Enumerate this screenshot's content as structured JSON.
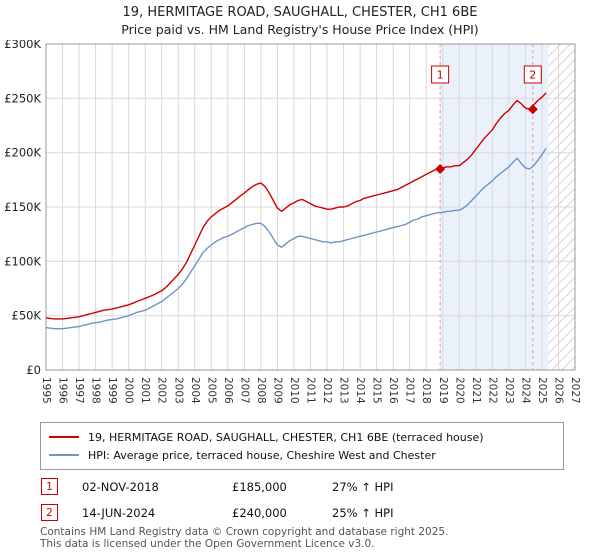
{
  "title": "19, HERMITAGE ROAD, SAUGHALL, CHESTER, CH1 6BE",
  "subtitle": "Price paid vs. HM Land Registry's House Price Index (HPI)",
  "chart_data": {
    "type": "line",
    "x_range": [
      1995,
      2027
    ],
    "y_range": [
      0,
      300
    ],
    "y_units": "GBP thousands",
    "y_ticks": [
      {
        "value": 0,
        "label": "£0"
      },
      {
        "value": 50,
        "label": "£50K"
      },
      {
        "value": 100,
        "label": "£100K"
      },
      {
        "value": 150,
        "label": "£150K"
      },
      {
        "value": 200,
        "label": "£200K"
      },
      {
        "value": 250,
        "label": "£250K"
      },
      {
        "value": 300,
        "label": "£300K"
      }
    ],
    "colors": {
      "shade": "#eaf1fa",
      "grid": "#d9d9d9",
      "marker_line": "#e39a9a",
      "border": "#999999"
    },
    "shaded_region": [
      2018.84,
      2025.4
    ],
    "hatched_region": [
      2025.4,
      2027
    ],
    "series": [
      {
        "name": "19, HERMITAGE ROAD, SAUGHALL, CHESTER, CH1 6BE (terraced house)",
        "color": "#cc0000",
        "x_start": 1995,
        "x_step": 0.25,
        "values": [
          48,
          47.5,
          47,
          47,
          47,
          47.5,
          48,
          48.5,
          49,
          50,
          51,
          52,
          53,
          54,
          55,
          55.5,
          56,
          57,
          58,
          59,
          60,
          61.5,
          63,
          64.5,
          66,
          67.5,
          69,
          71,
          73,
          76,
          80,
          84,
          88,
          93,
          99,
          107,
          115,
          123,
          131,
          137,
          141,
          144,
          147,
          149,
          151,
          154,
          157,
          160,
          163,
          166,
          169,
          171,
          172,
          169,
          163,
          156,
          149,
          146,
          149,
          152,
          154,
          156,
          157,
          155,
          153,
          151,
          150,
          149,
          148,
          148,
          149,
          150,
          150,
          151,
          153,
          155,
          156,
          158,
          159,
          160,
          161,
          162,
          163,
          164,
          165,
          166,
          168,
          170,
          172,
          174,
          176,
          178,
          180,
          182,
          184,
          185,
          186,
          187,
          187,
          188,
          188,
          191,
          194,
          198,
          203,
          208,
          213,
          217,
          221,
          227,
          232,
          236,
          239,
          244,
          248,
          245,
          241,
          240,
          244,
          248,
          251,
          255
        ]
      },
      {
        "name": "HPI: Average price, terraced house, Cheshire West and Chester",
        "color": "#6d95c8",
        "x_start": 1995,
        "x_step": 0.25,
        "values": [
          39,
          38.5,
          38,
          38,
          38,
          38.5,
          39,
          39.5,
          40,
          41,
          42,
          43,
          43.5,
          44,
          45,
          46,
          46.5,
          47,
          48,
          49,
          50,
          51.5,
          53,
          54,
          55,
          57,
          59,
          61,
          63,
          66,
          69,
          72,
          75,
          79,
          84,
          90,
          96,
          102,
          108,
          112,
          115,
          118,
          120,
          122,
          123,
          125,
          127,
          129,
          131,
          133,
          134,
          135,
          135,
          132,
          127,
          121,
          115,
          113,
          116,
          119,
          121,
          123,
          123,
          122,
          121,
          120,
          119,
          118,
          118,
          117,
          118,
          118,
          119,
          120,
          121,
          122,
          123,
          124,
          125,
          126,
          127,
          128,
          129,
          130,
          131,
          132,
          133,
          134,
          136,
          138,
          139,
          141,
          142,
          143,
          144,
          145,
          145,
          146,
          146,
          147,
          147,
          149,
          152,
          156,
          160,
          164,
          168,
          171,
          174,
          178,
          181,
          184,
          187,
          191,
          195,
          190,
          186,
          185,
          188,
          193,
          198,
          204
        ]
      }
    ],
    "markers": [
      {
        "label": "1",
        "x": 2018.84,
        "y": 185
      },
      {
        "label": "2",
        "x": 2024.45,
        "y": 240
      }
    ]
  },
  "legend": [
    "19, HERMITAGE ROAD, SAUGHALL, CHESTER, CH1 6BE (terraced house)",
    "HPI: Average price, terraced house, Cheshire West and Chester"
  ],
  "sales": [
    {
      "num": "1",
      "date": "02-NOV-2018",
      "price": "£185,000",
      "hpi": "27% ↑ HPI"
    },
    {
      "num": "2",
      "date": "14-JUN-2024",
      "price": "£240,000",
      "hpi": "25% ↑ HPI"
    }
  ],
  "footer": [
    "Contains HM Land Registry data © Crown copyright and database right 2025.",
    "This data is licensed under the Open Government Licence v3.0."
  ]
}
